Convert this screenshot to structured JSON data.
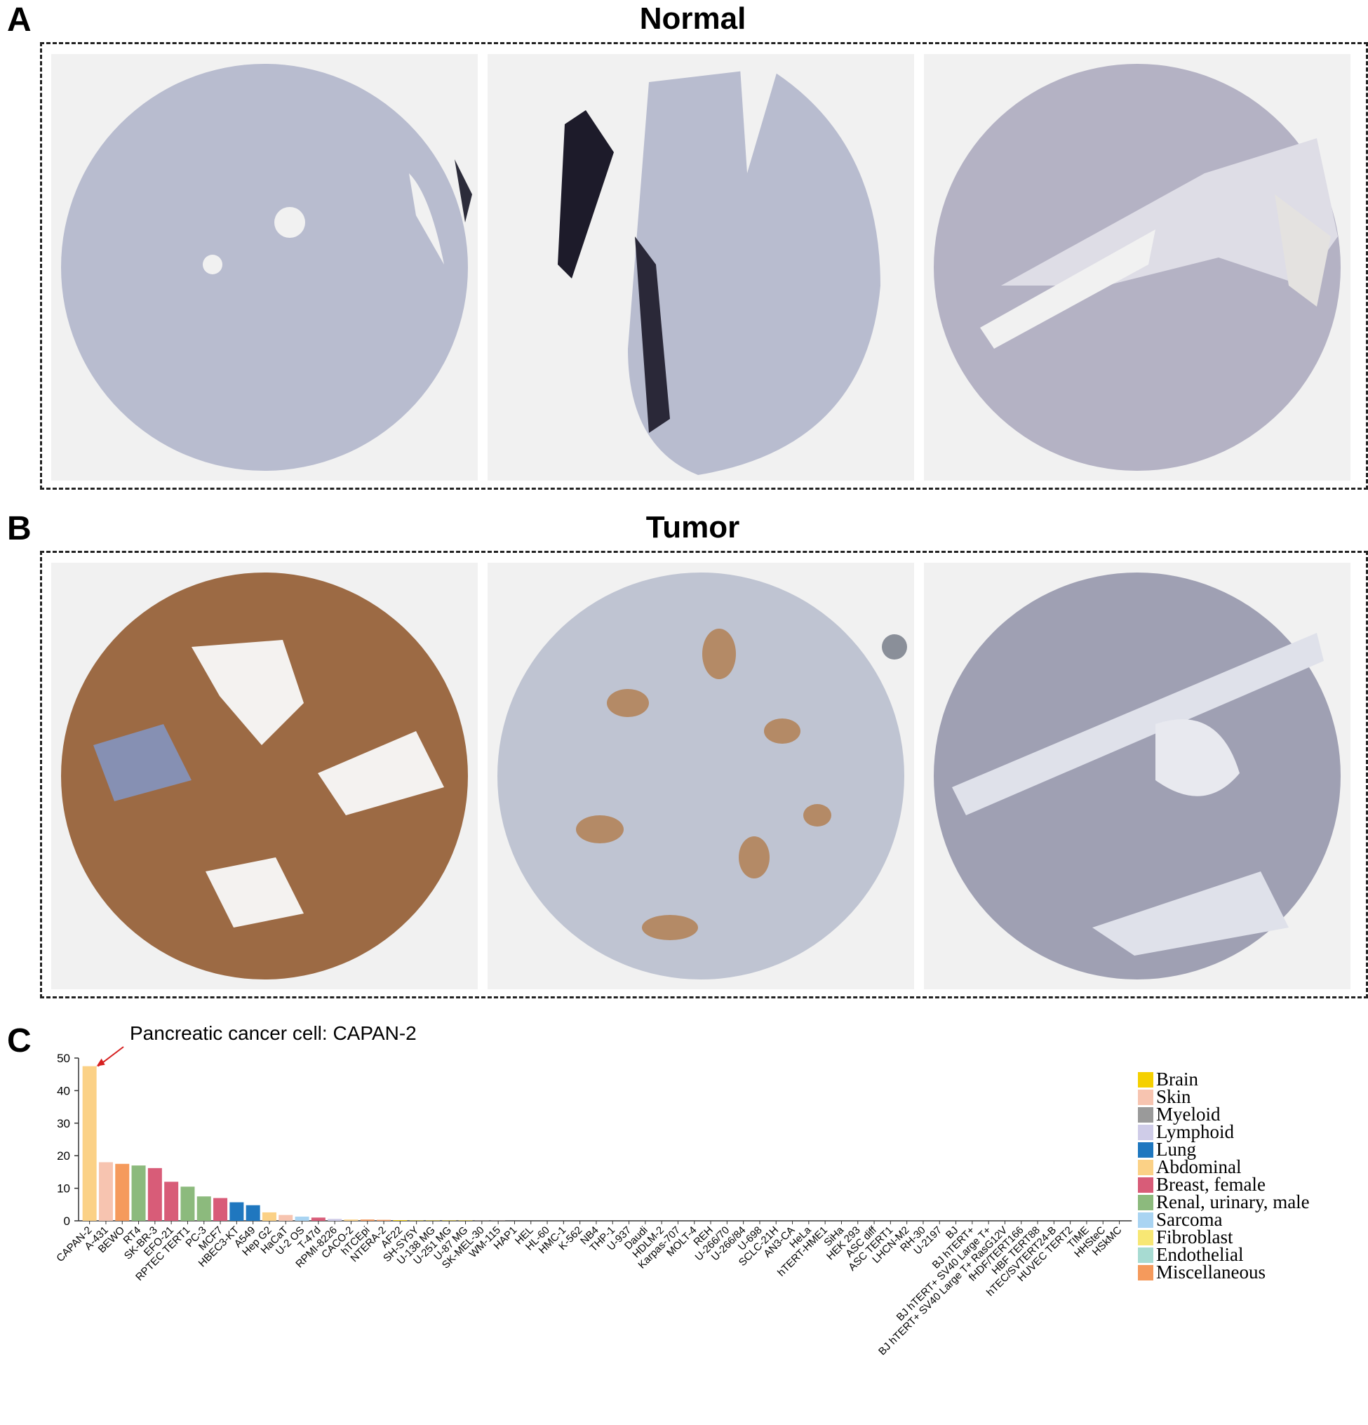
{
  "panels": {
    "a": {
      "letter": "A",
      "title": "Normal"
    },
    "b": {
      "letter": "B",
      "title": "Tumor"
    },
    "c": {
      "letter": "C"
    }
  },
  "tiles": [
    {
      "id": "normal-1",
      "stain": "normal"
    },
    {
      "id": "normal-2",
      "stain": "normal"
    },
    {
      "id": "normal-3",
      "stain": "normal-mild"
    },
    {
      "id": "tumor-1",
      "stain": "strong"
    },
    {
      "id": "tumor-2",
      "stain": "moderate"
    },
    {
      "id": "tumor-3",
      "stain": "weak"
    }
  ],
  "chart_data": {
    "type": "bar",
    "annotation": "Pancreatic cancer cell: CAPAN-2",
    "ylim": [
      0,
      50
    ],
    "yticks": [
      0,
      10,
      20,
      30,
      40,
      50
    ],
    "categories": [
      "CAPAN-2",
      "A-431",
      "BEWO",
      "RT4",
      "SK-BR-3",
      "EFO-21",
      "RPTEC TERT1",
      "PC-3",
      "MCF7",
      "HBEC3-KT",
      "A549",
      "Hep G2",
      "HaCaT",
      "U-2 OS",
      "T-47d",
      "RPMI-8226",
      "CACO-2",
      "hTCEpi",
      "NTERA-2",
      "AF22",
      "SH-SY5Y",
      "U-138 MG",
      "U-251 MG",
      "U-87 MG",
      "SK-MEL-30",
      "WM-115",
      "HAP1",
      "HEL",
      "HL-60",
      "HMC-1",
      "K-562",
      "NB4",
      "THP-1",
      "U-937",
      "Daudi",
      "HDLM-2",
      "Karpas-707",
      "MOLT-4",
      "REH",
      "U-266/70",
      "U-266/84",
      "U-698",
      "SCLC-21H",
      "AN3-CA",
      "HeLa",
      "hTERT-HME1",
      "SiHa",
      "HEK 293",
      "ASC diff",
      "ASC TERT1",
      "LHCN-M2",
      "RH-30",
      "U-2197",
      "BJ",
      "BJ hTERT+",
      "BJ hTERT+ SV40 Large T+",
      "BJ hTERT+ SV40 Large T+ RasG12V",
      "fHDF/TERT166",
      "HBF TERT88",
      "hTEC/SVTERT24-B",
      "HUVEC TERT2",
      "TIME",
      "HHSteC",
      "HSkMC"
    ],
    "values": [
      47.5,
      18,
      17.5,
      17,
      16.2,
      12,
      10.5,
      7.5,
      7,
      5.7,
      4.8,
      2.6,
      1.8,
      1.3,
      1,
      0.6,
      0.4,
      0.4,
      0.3,
      0.2,
      0.1,
      0.1,
      0.1,
      0.1,
      0.05,
      0.05,
      0,
      0,
      0,
      0,
      0,
      0,
      0,
      0,
      0,
      0,
      0,
      0,
      0,
      0,
      0,
      0,
      0,
      0,
      0,
      0,
      0,
      0,
      0,
      0,
      0,
      0,
      0,
      0,
      0,
      0,
      0,
      0,
      0,
      0,
      0,
      0,
      0,
      0
    ],
    "groups": [
      "Abdominal",
      "Skin",
      "Miscellaneous",
      "Renal, urinary, male",
      "Breast, female",
      "Breast, female",
      "Renal, urinary, male",
      "Renal, urinary, male",
      "Breast, female",
      "Lung",
      "Lung",
      "Abdominal",
      "Skin",
      "Sarcoma",
      "Breast, female",
      "Lymphoid",
      "Abdominal",
      "Miscellaneous",
      "Miscellaneous",
      "Brain",
      "Brain",
      "Brain",
      "Brain",
      "Brain",
      "Skin",
      "Skin",
      "Myeloid",
      "Myeloid",
      "Myeloid",
      "Myeloid",
      "Myeloid",
      "Myeloid",
      "Myeloid",
      "Myeloid",
      "Lymphoid",
      "Lymphoid",
      "Lymphoid",
      "Lymphoid",
      "Lymphoid",
      "Lymphoid",
      "Lymphoid",
      "Lymphoid",
      "Lung",
      "Breast, female",
      "Breast, female",
      "Breast, female",
      "Breast, female",
      "Renal, urinary, male",
      "Fibroblast",
      "Fibroblast",
      "Sarcoma",
      "Sarcoma",
      "Sarcoma",
      "Fibroblast",
      "Fibroblast",
      "Fibroblast",
      "Fibroblast",
      "Fibroblast",
      "Fibroblast",
      "Endothelial",
      "Endothelial",
      "Endothelial",
      "Miscellaneous",
      "Sarcoma"
    ],
    "legend": [
      {
        "label": "Brain",
        "color": "#f5d000"
      },
      {
        "label": "Skin",
        "color": "#f7c4b0"
      },
      {
        "label": "Myeloid",
        "color": "#9a9a9a"
      },
      {
        "label": "Lymphoid",
        "color": "#cfcce8"
      },
      {
        "label": "Lung",
        "color": "#1f77bf"
      },
      {
        "label": "Abdominal",
        "color": "#fbd186"
      },
      {
        "label": "Breast, female",
        "color": "#d85c78"
      },
      {
        "label": "Renal, urinary, male",
        "color": "#8cba7d"
      },
      {
        "label": "Sarcoma",
        "color": "#a9d4f2"
      },
      {
        "label": "Fibroblast",
        "color": "#f7e774"
      },
      {
        "label": "Endothelial",
        "color": "#a7dbd2"
      },
      {
        "label": "Miscellaneous",
        "color": "#f59a5c"
      }
    ],
    "legend_position": "right"
  }
}
